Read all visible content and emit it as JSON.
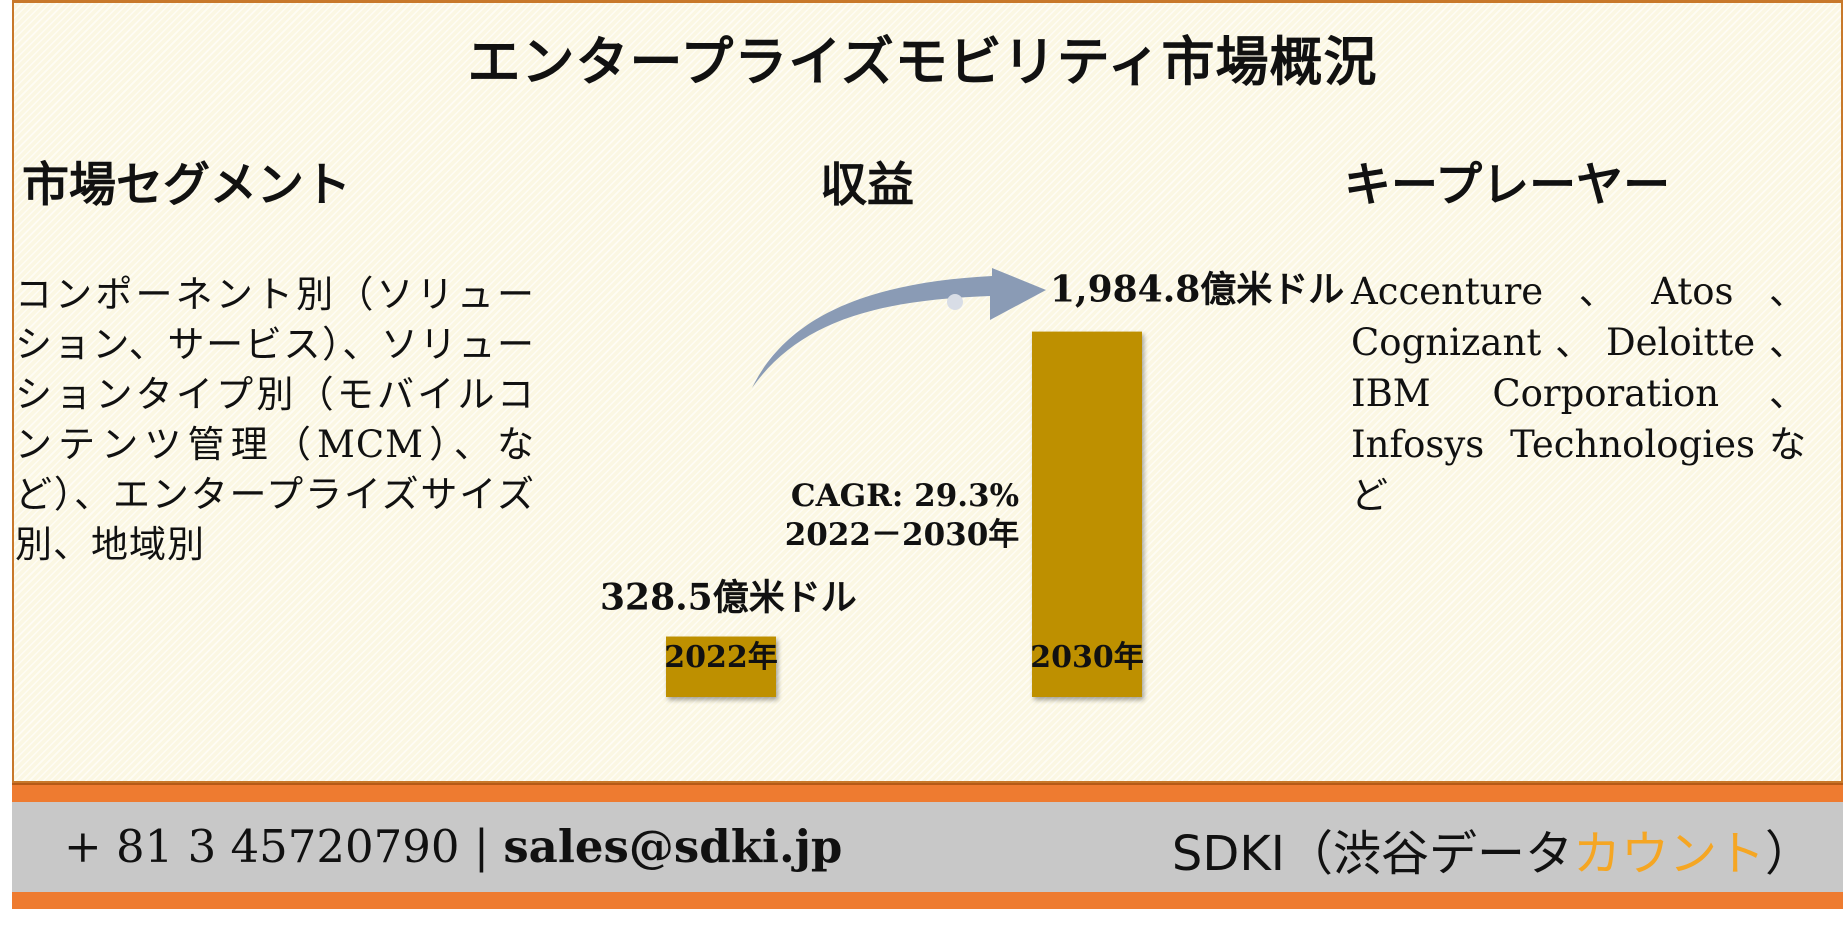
{
  "title": "エンタープライズモビリティ市場概況",
  "sections": {
    "segments": {
      "heading": "市場セグメント",
      "text": "コンポーネント別（ソリューション、サービス）、ソリューションタイプ別（モバイルコンテンツ管理（MCM）、など）、エンタープライズサイズ別、地域別"
    },
    "revenue": {
      "heading": "収益"
    },
    "players": {
      "heading": "キープレーヤー",
      "text": "Accenture、Atos、Cognizant、Deloitte、IBM Corporation、Infosys Technologiesなど"
    }
  },
  "chart_data": {
    "type": "bar",
    "categories": [
      "2022年",
      "2030年"
    ],
    "values": [
      328.5,
      1984.8
    ],
    "value_labels": [
      "328.5億米ドル",
      "1,984.8億米ドル"
    ],
    "unit": "億米ドル",
    "annotation": {
      "line1": "CAGR: 29.3%",
      "line2": "2022－2030年"
    },
    "bar_color": "#be9000",
    "arrow_color": "#8a9bb5"
  },
  "footer": {
    "phone": "+ 81 3 45720790",
    "separator": " | ",
    "email": "sales@sdki.jp",
    "brand_main": "SDKI（渋谷データ",
    "brand_accent": "カウント",
    "brand_end": "）"
  },
  "colors": {
    "accent_orange": "#ee7b30",
    "brand_accent": "#f5a623",
    "footer_bg": "#c8c8c8"
  }
}
